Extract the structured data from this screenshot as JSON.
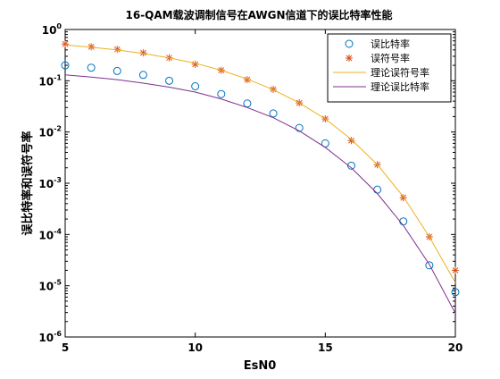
{
  "chart_data": {
    "type": "line",
    "title": "16-QAM载波调制信号在AWGN信道下的误比特率性能",
    "xlabel": "EsN0",
    "ylabel": "误比特率和误符号率",
    "xlim": [
      5,
      20
    ],
    "ylim": [
      1e-06,
      1
    ],
    "yscale": "log",
    "grid": false,
    "legend_position": "top-right",
    "xticks": [
      5,
      10,
      15,
      20
    ],
    "xtick_labels": [
      "5",
      "10",
      "15",
      "20"
    ],
    "yticks": [
      1e-06,
      1e-05,
      0.0001,
      0.001,
      0.01,
      0.1,
      1
    ],
    "ytick_labels": [
      {
        "base": "10",
        "exp": "-6"
      },
      {
        "base": "10",
        "exp": "-5"
      },
      {
        "base": "10",
        "exp": "-4"
      },
      {
        "base": "10",
        "exp": "-3"
      },
      {
        "base": "10",
        "exp": "-2"
      },
      {
        "base": "10",
        "exp": "-1"
      },
      {
        "base": "10",
        "exp": "0"
      }
    ],
    "x": [
      5,
      6,
      7,
      8,
      9,
      10,
      11,
      12,
      13,
      14,
      15,
      16,
      17,
      18,
      19,
      20
    ],
    "series": [
      {
        "name": "误比特率",
        "style": "markers",
        "marker": "circle",
        "color": "#0072BD",
        "values": [
          0.2,
          0.18,
          0.155,
          0.13,
          0.1,
          0.078,
          0.055,
          0.036,
          0.023,
          0.012,
          0.006,
          0.0022,
          0.00075,
          0.00018,
          2.5e-05,
          7.5e-06
        ]
      },
      {
        "name": "误符号率",
        "style": "markers",
        "marker": "asterisk",
        "color": "#D95319",
        "values": [
          0.52,
          0.46,
          0.41,
          0.35,
          0.28,
          0.21,
          0.16,
          0.105,
          0.068,
          0.037,
          0.018,
          0.0068,
          0.0023,
          0.00052,
          9e-05,
          2e-05
        ]
      },
      {
        "name": "理论误符号率",
        "style": "line",
        "color": "#EDB120",
        "values": [
          0.5,
          0.45,
          0.4,
          0.34,
          0.28,
          0.22,
          0.16,
          0.108,
          0.067,
          0.037,
          0.018,
          0.0072,
          0.0023,
          0.00055,
          9e-05,
          1.15e-05
        ]
      },
      {
        "name": "理论误比特率",
        "style": "line",
        "color": "#7E2F8E",
        "values": [
          0.13,
          0.118,
          0.105,
          0.09,
          0.075,
          0.06,
          0.044,
          0.03,
          0.019,
          0.0105,
          0.005,
          0.002,
          0.00063,
          0.00015,
          2.6e-05,
          2.9e-06
        ]
      }
    ]
  }
}
